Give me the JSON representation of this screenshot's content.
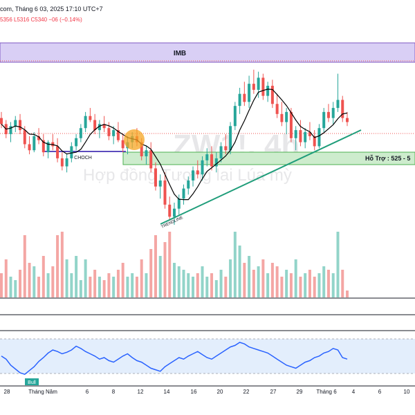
{
  "header": {
    "title_fragment": "com, Tháng 6 03, 2025 17:10 UTC+7",
    "ohlc": "5356  L5316  C5340  −06 (−0.14%)"
  },
  "watermark": {
    "symbol": "ZW1!, 4h",
    "subtitle": "Hợp đồng Tương lai Lúa mỳ"
  },
  "annotations": {
    "imb": "IMB",
    "choch": "CHOCH",
    "support": "Hỗ Trợ : 525 - 5",
    "trendline": "TRENDLINE",
    "bull": "Bull"
  },
  "time_axis": {
    "labels": [
      "28",
      "Tháng Năm",
      "6",
      "8",
      "12",
      "14",
      "16",
      "20",
      "22",
      "27",
      "29",
      "Tháng 6",
      "4",
      "6",
      "10"
    ]
  },
  "colors": {
    "bull": "#26a69a",
    "bear": "#ef5350",
    "vol_bull": "#92d4c9",
    "vol_bear": "#f4a6a4",
    "ma": "#000000",
    "imb_fill": "#d9cff5",
    "imb_border": "#7e57c2",
    "support_fill": "#cdeccd",
    "support_border": "#4caf50",
    "trendline": "#1f9d7a",
    "choch": "#5c4bbd",
    "rsi": "#2962ff",
    "rsi_band": "#e3eefc"
  },
  "chart_data": {
    "type": "candlestick",
    "title": "",
    "price_candles_ohlc": [
      [
        548,
        551,
        543,
        545
      ],
      [
        545,
        547,
        538,
        540
      ],
      [
        540,
        546,
        536,
        544
      ],
      [
        544,
        549,
        541,
        547
      ],
      [
        547,
        550,
        540,
        542
      ],
      [
        542,
        544,
        533,
        535
      ],
      [
        535,
        539,
        530,
        532
      ],
      [
        532,
        541,
        531,
        539
      ],
      [
        539,
        543,
        535,
        537
      ],
      [
        537,
        540,
        529,
        531
      ],
      [
        531,
        537,
        528,
        536
      ],
      [
        536,
        540,
        532,
        534
      ],
      [
        534,
        538,
        526,
        528
      ],
      [
        528,
        531,
        522,
        524
      ],
      [
        524,
        530,
        521,
        528
      ],
      [
        528,
        536,
        526,
        534
      ],
      [
        534,
        540,
        532,
        538
      ],
      [
        538,
        545,
        536,
        543
      ],
      [
        543,
        551,
        541,
        549
      ],
      [
        549,
        553,
        546,
        547
      ],
      [
        547,
        550,
        540,
        542
      ],
      [
        542,
        547,
        538,
        545
      ],
      [
        545,
        549,
        541,
        543
      ],
      [
        543,
        546,
        537,
        539
      ],
      [
        539,
        544,
        535,
        542
      ],
      [
        542,
        546,
        536,
        537
      ],
      [
        537,
        540,
        531,
        533
      ],
      [
        533,
        539,
        530,
        536
      ],
      [
        536,
        541,
        533,
        539
      ],
      [
        539,
        543,
        534,
        536
      ],
      [
        536,
        538,
        527,
        529
      ],
      [
        529,
        534,
        525,
        532
      ],
      [
        532,
        536,
        521,
        523
      ],
      [
        523,
        526,
        512,
        514
      ],
      [
        514,
        520,
        508,
        517
      ],
      [
        517,
        521,
        503,
        505
      ],
      [
        505,
        509,
        497,
        499
      ],
      [
        499,
        506,
        495,
        503
      ],
      [
        503,
        510,
        500,
        508
      ],
      [
        508,
        515,
        505,
        513
      ],
      [
        513,
        519,
        510,
        517
      ],
      [
        517,
        524,
        514,
        522
      ],
      [
        522,
        527,
        518,
        520
      ],
      [
        520,
        529,
        517,
        527
      ],
      [
        527,
        533,
        524,
        530
      ],
      [
        530,
        534,
        522,
        524
      ],
      [
        524,
        531,
        521,
        528
      ],
      [
        528,
        536,
        526,
        534
      ],
      [
        534,
        540,
        530,
        532
      ],
      [
        532,
        546,
        530,
        544
      ],
      [
        544,
        556,
        542,
        554
      ],
      [
        554,
        563,
        550,
        560
      ],
      [
        560,
        566,
        554,
        556
      ],
      [
        556,
        569,
        553,
        565
      ],
      [
        565,
        572,
        560,
        562
      ],
      [
        562,
        571,
        558,
        568
      ],
      [
        568,
        570,
        557,
        559
      ],
      [
        559,
        566,
        556,
        564
      ],
      [
        564,
        567,
        553,
        555
      ],
      [
        555,
        560,
        548,
        550
      ],
      [
        550,
        556,
        544,
        546
      ],
      [
        546,
        553,
        540,
        551
      ],
      [
        551,
        553,
        536,
        538
      ],
      [
        538,
        544,
        532,
        542
      ],
      [
        542,
        547,
        534,
        536
      ],
      [
        536,
        543,
        533,
        541
      ],
      [
        541,
        546,
        537,
        539
      ],
      [
        539,
        542,
        532,
        534
      ],
      [
        534,
        545,
        533,
        543
      ],
      [
        543,
        553,
        541,
        551
      ],
      [
        551,
        555,
        546,
        548
      ],
      [
        548,
        556,
        545,
        553
      ],
      [
        553,
        570,
        551,
        557
      ],
      [
        557,
        559,
        546,
        548
      ],
      [
        548,
        551,
        544,
        546
      ]
    ],
    "price_level_labels": {
      "imb": "IMB",
      "support": "Hỗ Trợ : 525 - 5"
    },
    "volume_relative": [
      0.35,
      0.55,
      0.3,
      0.25,
      0.4,
      0.9,
      0.5,
      0.45,
      0.3,
      0.6,
      0.35,
      0.45,
      0.9,
      0.95,
      0.55,
      0.35,
      0.6,
      0.25,
      0.55,
      0.3,
      0.4,
      0.3,
      0.25,
      0.35,
      0.3,
      0.4,
      0.5,
      0.3,
      0.35,
      0.3,
      0.55,
      0.35,
      0.7,
      0.9,
      0.6,
      0.8,
      0.95,
      0.5,
      0.45,
      0.4,
      0.35,
      0.3,
      0.35,
      0.45,
      0.3,
      0.35,
      0.25,
      0.4,
      0.3,
      0.55,
      0.95,
      0.75,
      0.5,
      0.6,
      0.4,
      0.45,
      0.55,
      0.35,
      0.5,
      0.45,
      0.3,
      0.4,
      0.35,
      0.55,
      0.3,
      0.35,
      0.4,
      0.3,
      0.35,
      0.45,
      0.4,
      0.35,
      0.95,
      0.4,
      0.1
    ],
    "rsi": [
      52,
      48,
      40,
      35,
      30,
      28,
      33,
      38,
      45,
      50,
      56,
      60,
      58,
      55,
      57,
      60,
      65,
      62,
      58,
      55,
      52,
      48,
      50,
      46,
      44,
      48,
      52,
      55,
      50,
      46,
      44,
      40,
      36,
      34,
      32,
      38,
      42,
      46,
      50,
      48,
      52,
      55,
      58,
      54,
      50,
      48,
      52,
      56,
      60,
      64,
      66,
      70,
      68,
      64,
      62,
      60,
      58,
      56,
      52,
      48,
      44,
      40,
      38,
      36,
      40,
      44,
      46,
      50,
      52,
      56,
      58,
      62,
      60,
      50,
      48
    ],
    "rsi_band": [
      30,
      70
    ]
  }
}
